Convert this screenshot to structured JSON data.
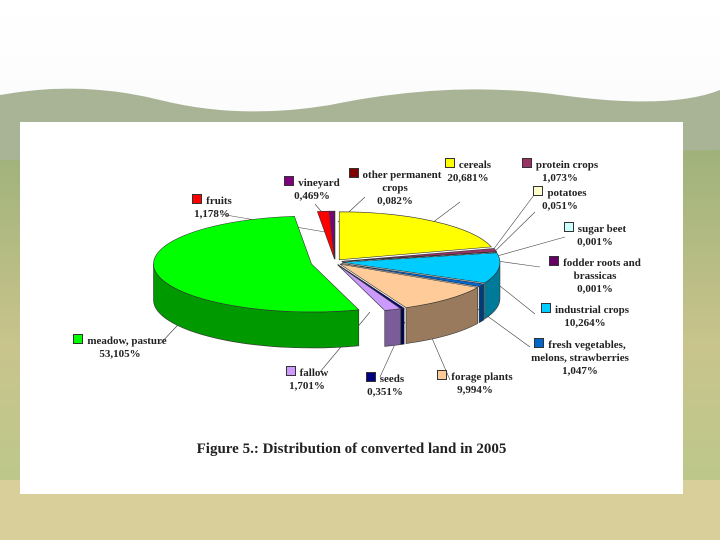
{
  "chart_data": {
    "type": "pie",
    "title": "Figure 5.: Distribution of converted land in 2005",
    "categories": [
      "cereals",
      "protein crops",
      "potatoes",
      "sugar beet",
      "fodder roots and brassicas",
      "industrial crops",
      "fresh vegetables, melons, strawberries",
      "forage plants",
      "seeds",
      "fallow",
      "meadow, pasture",
      "fruits",
      "vineyard",
      "other permanent crops"
    ],
    "values": [
      20.681,
      1.073,
      0.051,
      0.001,
      0.001,
      10.264,
      1.047,
      9.994,
      0.351,
      1.701,
      53.105,
      1.178,
      0.469,
      0.082
    ],
    "value_labels": [
      "20,681%",
      "1,073%",
      "0,051%",
      "0,001%",
      "0,001%",
      "10,264%",
      "1,047%",
      "9,994%",
      "0,351%",
      "1,701%",
      "53,105%",
      "1,178%",
      "0,469%",
      "0,082%"
    ],
    "colors": [
      "#ffff00",
      "#993366",
      "#ffffcc",
      "#ccffff",
      "#660066",
      "#00ccff",
      "#0066cc",
      "#ffcc99",
      "#000080",
      "#cc99ff",
      "#00ff00",
      "#ff0000",
      "#800080",
      "#800000"
    ]
  }
}
